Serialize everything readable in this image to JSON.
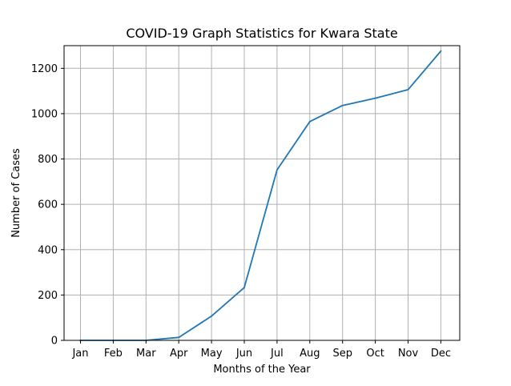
{
  "chart_data": {
    "type": "line",
    "title": "COVID-19 Graph Statistics for Kwara State",
    "xlabel": "Months of the Year",
    "ylabel": "Number of Cases",
    "categories": [
      "Jan",
      "Feb",
      "Mar",
      "Apr",
      "May",
      "Jun",
      "Jul",
      "Aug",
      "Sep",
      "Oct",
      "Nov",
      "Dec"
    ],
    "series": [
      {
        "values": [
          0,
          0,
          0,
          13,
          107,
          233,
          752,
          965,
          1036,
          1068,
          1106,
          1276
        ],
        "color": "#1f77b4"
      }
    ],
    "ylim": [
      0,
      1300
    ],
    "yticks": [
      0,
      200,
      400,
      600,
      800,
      1000,
      1200
    ],
    "grid": true,
    "legend": "none"
  }
}
